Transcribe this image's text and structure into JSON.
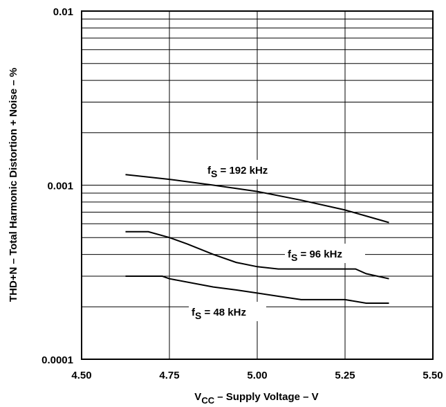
{
  "chart_data": {
    "type": "line",
    "title": "",
    "xlabel": {
      "main": "V",
      "sub": "CC",
      "rest": " – Supply Voltage – V"
    },
    "ylabel": "THD+N – Total Harmonic Distortion + Noise – %",
    "xlim": [
      4.5,
      5.5
    ],
    "ylim": [
      0.0001,
      0.01
    ],
    "yscale": "log",
    "grid": true,
    "x_ticks": [
      {
        "value": 4.5,
        "label": "4.50"
      },
      {
        "value": 4.75,
        "label": "4.75"
      },
      {
        "value": 5.0,
        "label": "5.00"
      },
      {
        "value": 5.25,
        "label": "5.25"
      },
      {
        "value": 5.5,
        "label": "5.50"
      }
    ],
    "y_ticks": [
      {
        "value": 0.0001,
        "label": "0.0001"
      },
      {
        "value": 0.001,
        "label": "0.001"
      },
      {
        "value": 0.01,
        "label": "0.01"
      }
    ],
    "series": [
      {
        "label_parts": {
          "prefix": "f",
          "sub": "S",
          "suffix": " = 192 kHz"
        },
        "x": [
          4.625,
          4.75,
          4.875,
          5.0,
          5.125,
          5.25,
          5.375
        ],
        "y": [
          0.00115,
          0.00108,
          0.001,
          0.00092,
          0.00082,
          0.00072,
          0.00061
        ]
      },
      {
        "label_parts": {
          "prefix": "f",
          "sub": "S",
          "suffix": " = 96 kHz"
        },
        "x": [
          4.625,
          4.69,
          4.75,
          4.8,
          4.875,
          4.94,
          5.0,
          5.06,
          5.125,
          5.19,
          5.25,
          5.28,
          5.31,
          5.375
        ],
        "y": [
          0.00054,
          0.00054,
          0.0005,
          0.00046,
          0.0004,
          0.00036,
          0.00034,
          0.00033,
          0.00033,
          0.00033,
          0.00033,
          0.00033,
          0.00031,
          0.00029
        ]
      },
      {
        "label_parts": {
          "prefix": "f",
          "sub": "S",
          "suffix": " = 48 kHz"
        },
        "x": [
          4.625,
          4.73,
          4.75,
          4.875,
          4.94,
          5.0,
          5.06,
          5.125,
          5.19,
          5.25,
          5.31,
          5.375
        ],
        "y": [
          0.0003,
          0.0003,
          0.00029,
          0.00026,
          0.00025,
          0.00024,
          0.00023,
          0.00022,
          0.00022,
          0.00022,
          0.00021,
          0.00021
        ]
      }
    ]
  }
}
